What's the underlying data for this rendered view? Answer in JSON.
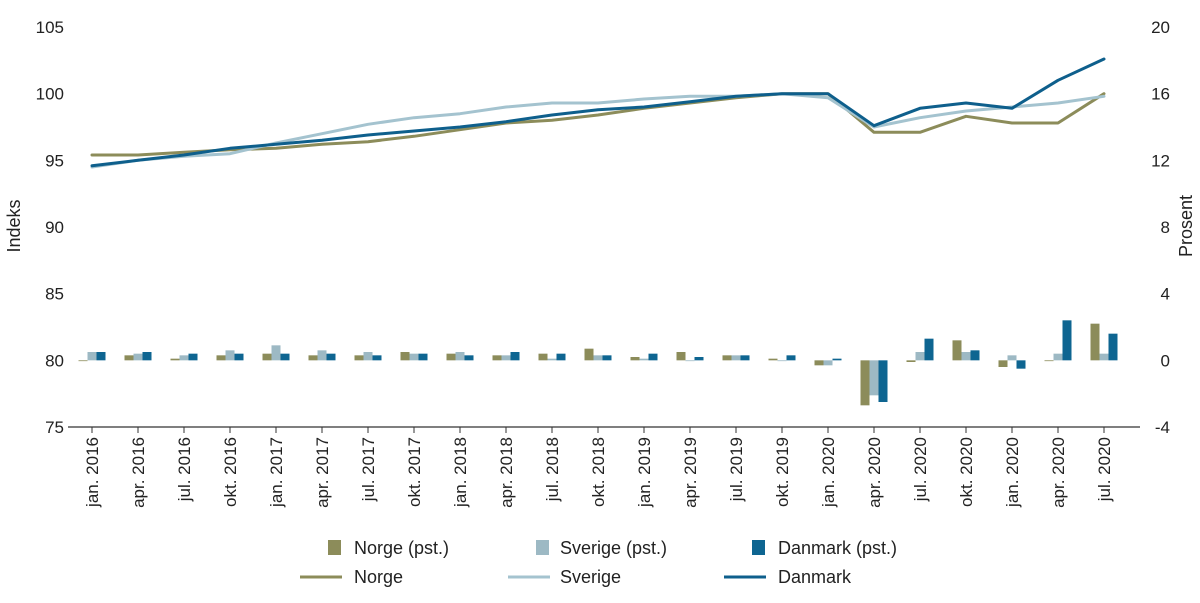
{
  "chart_data": {
    "type": "bar+line",
    "categories": [
      "jan. 2016",
      "apr. 2016",
      "jul. 2016",
      "okt. 2016",
      "jan. 2017",
      "apr. 2017",
      "jul. 2017",
      "okt. 2017",
      "jan. 2018",
      "apr. 2018",
      "jul. 2018",
      "okt. 2018",
      "jan. 2019",
      "apr. 2019",
      "jul. 2019",
      "okt. 2019",
      "jan. 2020",
      "apr. 2020",
      "jul. 2020",
      "okt. 2020",
      "jan. 2020",
      "apr. 2020",
      "jul. 2020"
    ],
    "left_axis": {
      "label": "Indeks",
      "ylim": [
        75,
        105
      ],
      "ticks": [
        75,
        80,
        85,
        90,
        95,
        100,
        105
      ]
    },
    "right_axis": {
      "label": "Prosent",
      "ylim": [
        -4,
        20
      ],
      "ticks": [
        -4,
        0,
        4,
        8,
        12,
        16,
        20
      ]
    },
    "bar_series": [
      {
        "name": "Norge (pst.)",
        "color": "#8c8c5a",
        "values": [
          0,
          0.3,
          0.1,
          0.3,
          0.4,
          0.3,
          0.3,
          0.5,
          0.4,
          0.3,
          0.4,
          0.7,
          0.2,
          0.5,
          0.3,
          0.1,
          -0.3,
          -2.7,
          -0.1,
          1.2,
          -0.4,
          0,
          2.2
        ]
      },
      {
        "name": "Sverige (pst.)",
        "color": "#9db9c4",
        "values": [
          0.5,
          0.4,
          0.3,
          0.6,
          0.9,
          0.6,
          0.5,
          0.4,
          0.5,
          0.3,
          0.1,
          0.3,
          0.1,
          0,
          0.3,
          0,
          -0.3,
          -2.1,
          0.5,
          0.5,
          0.3,
          0.4,
          0.4
        ]
      },
      {
        "name": "Danmark (pst.)",
        "color": "#0e6591",
        "values": [
          0.5,
          0.5,
          0.4,
          0.4,
          0.4,
          0.4,
          0.3,
          0.4,
          0.3,
          0.5,
          0.4,
          0.3,
          0.4,
          0.2,
          0.3,
          0.3,
          0.1,
          -2.5,
          1.3,
          0.6,
          -0.5,
          2.4,
          1.6
        ]
      }
    ],
    "line_series": [
      {
        "name": "Norge",
        "color": "#8c8c5a",
        "values": [
          95.4,
          95.4,
          95.6,
          95.8,
          95.9,
          96.2,
          96.4,
          96.8,
          97.3,
          97.8,
          98.0,
          98.4,
          98.9,
          99.3,
          99.7,
          100.0,
          100.0,
          97.1,
          97.1,
          98.3,
          97.8,
          97.8,
          100.0
        ]
      },
      {
        "name": "Sverige",
        "color": "#a4c3cf",
        "values": [
          94.5,
          95.0,
          95.3,
          95.5,
          96.3,
          97.0,
          97.7,
          98.2,
          98.5,
          99.0,
          99.3,
          99.3,
          99.6,
          99.8,
          99.8,
          100.0,
          99.7,
          97.5,
          98.2,
          98.7,
          99.0,
          99.3,
          99.8
        ]
      },
      {
        "name": "Danmark",
        "color": "#0e5f8c",
        "values": [
          94.6,
          95.0,
          95.4,
          95.9,
          96.2,
          96.5,
          96.9,
          97.2,
          97.5,
          97.9,
          98.4,
          98.8,
          99.0,
          99.4,
          99.8,
          100.0,
          100.0,
          97.6,
          98.9,
          99.3,
          98.9,
          101.0,
          102.6
        ]
      }
    ]
  }
}
